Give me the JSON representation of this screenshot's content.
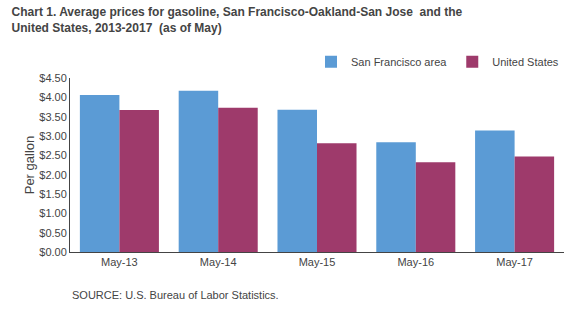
{
  "chart_data": {
    "type": "bar",
    "title": "Chart 1. Average prices for gasoline, San Francisco-Oakland-San Jose  and the",
    "subtitle": "United States, 2013-2017  (as of May)",
    "ylabel": "Per gallon",
    "categories": [
      "May-13",
      "May-14",
      "May-15",
      "May-16",
      "May-17"
    ],
    "series": [
      {
        "name": "San Francisco area",
        "color": "#5B9BD5",
        "values": [
          4.06,
          4.17,
          3.68,
          2.84,
          3.14
        ]
      },
      {
        "name": "United States",
        "color": "#9E3A6B",
        "values": [
          3.67,
          3.73,
          2.81,
          2.32,
          2.47
        ]
      }
    ],
    "ylim": [
      0.0,
      4.5
    ],
    "yticks": [
      {
        "value": 0.0,
        "label": "$0.00"
      },
      {
        "value": 0.5,
        "label": "$0.50"
      },
      {
        "value": 1.0,
        "label": "$1.00"
      },
      {
        "value": 1.5,
        "label": "$1.50"
      },
      {
        "value": 2.0,
        "label": "$2.00"
      },
      {
        "value": 2.5,
        "label": "$2.50"
      },
      {
        "value": 3.0,
        "label": "$3.00"
      },
      {
        "value": 3.5,
        "label": "$3.50"
      },
      {
        "value": 4.0,
        "label": "$4.00"
      },
      {
        "value": 4.5,
        "label": "$4.50"
      }
    ],
    "annotations": [
      "SOURCE: U.S. Bureau of Labor Statistics."
    ],
    "legend": "upper right",
    "grid": false
  }
}
